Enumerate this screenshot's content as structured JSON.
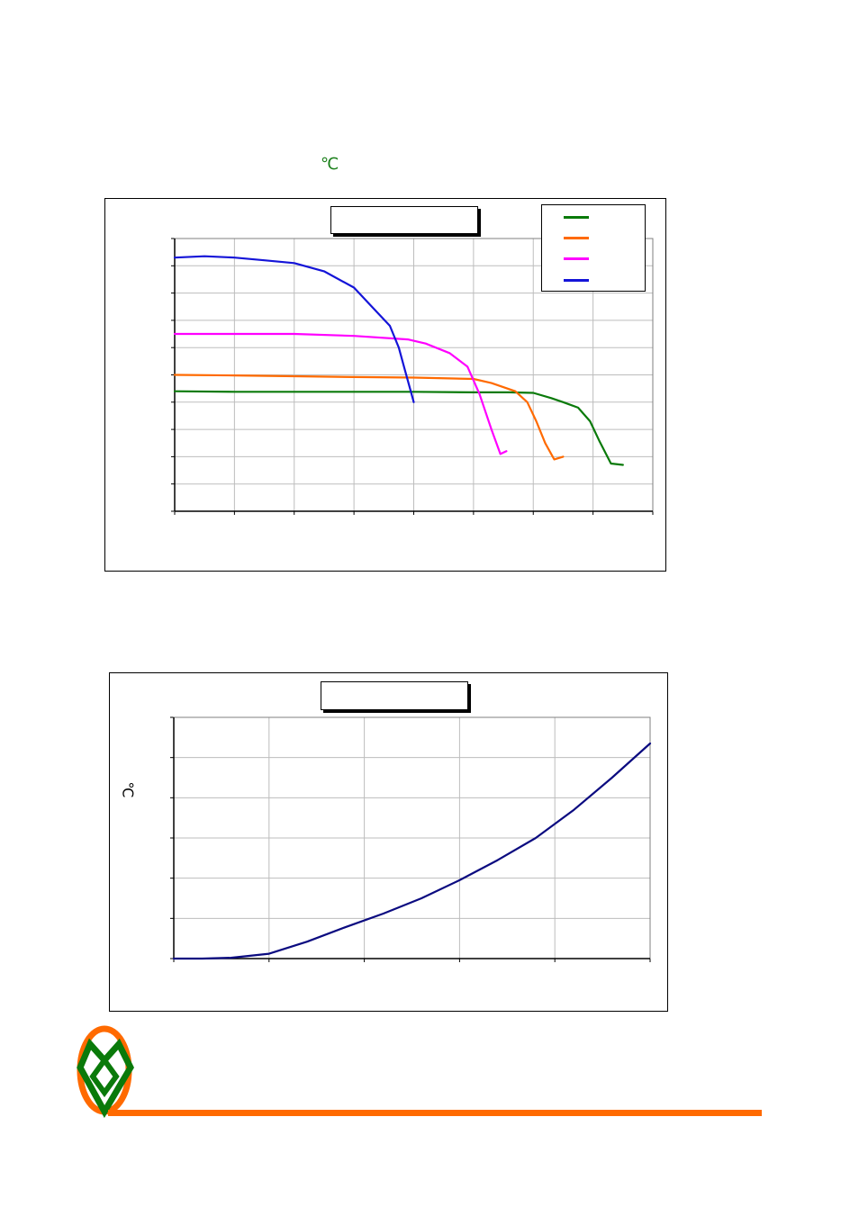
{
  "header_note": "℃",
  "chart_data": [
    {
      "type": "line",
      "title": "",
      "legend_placement": "top-right",
      "grid": true,
      "xlim": [
        0,
        8
      ],
      "ylim": [
        0,
        10
      ],
      "series": [
        {
          "color": "#0a7a0a",
          "x": [
            0,
            1,
            2,
            3,
            4,
            5,
            5.6,
            6.0,
            6.3,
            6.5,
            6.75,
            6.95,
            7.1,
            7.3,
            7.5
          ],
          "y": [
            4.4,
            4.38,
            4.38,
            4.38,
            4.38,
            4.36,
            4.36,
            4.34,
            4.15,
            4.0,
            3.8,
            3.3,
            2.6,
            1.75,
            1.7
          ]
        },
        {
          "color": "#ff6a00",
          "x": [
            0,
            1,
            2,
            3,
            4,
            5,
            5.3,
            5.7,
            5.9,
            6.05,
            6.2,
            6.35,
            6.5
          ],
          "y": [
            5.0,
            4.98,
            4.95,
            4.92,
            4.9,
            4.85,
            4.7,
            4.4,
            4.0,
            3.3,
            2.5,
            1.9,
            2.0
          ]
        },
        {
          "color": "#ff00ff",
          "x": [
            0,
            1,
            2,
            3,
            3.9,
            4.2,
            4.6,
            4.9,
            5.1,
            5.3,
            5.45,
            5.55
          ],
          "y": [
            6.5,
            6.5,
            6.5,
            6.43,
            6.3,
            6.15,
            5.8,
            5.3,
            4.3,
            3.0,
            2.1,
            2.2
          ]
        },
        {
          "color": "#1414d8",
          "x": [
            0,
            0.5,
            1,
            1.5,
            2,
            2.5,
            3.0,
            3.3,
            3.6,
            3.75,
            3.85,
            3.95,
            4.0
          ],
          "y": [
            9.3,
            9.35,
            9.3,
            9.2,
            9.1,
            8.8,
            8.2,
            7.5,
            6.8,
            6.0,
            5.2,
            4.4,
            4.0
          ]
        }
      ]
    },
    {
      "type": "line",
      "title": "",
      "grid": true,
      "xlim": [
        0,
        5
      ],
      "ylim": [
        0,
        6
      ],
      "ylabel": "℃",
      "series": [
        {
          "color": "#0b0b80",
          "x": [
            0,
            0.3,
            0.6,
            1.0,
            1.4,
            1.8,
            2.2,
            2.6,
            3.0,
            3.4,
            3.8,
            4.2,
            4.6,
            5.0
          ],
          "y": [
            0,
            0,
            0.02,
            0.12,
            0.42,
            0.78,
            1.12,
            1.5,
            1.95,
            2.45,
            3.0,
            3.7,
            4.5,
            5.35
          ]
        }
      ]
    }
  ],
  "chart1_legend": [
    "",
    "",
    "",
    ""
  ],
  "colors": {
    "accent_orange": "#ff6a00",
    "logo_green": "#0a7a0a"
  }
}
